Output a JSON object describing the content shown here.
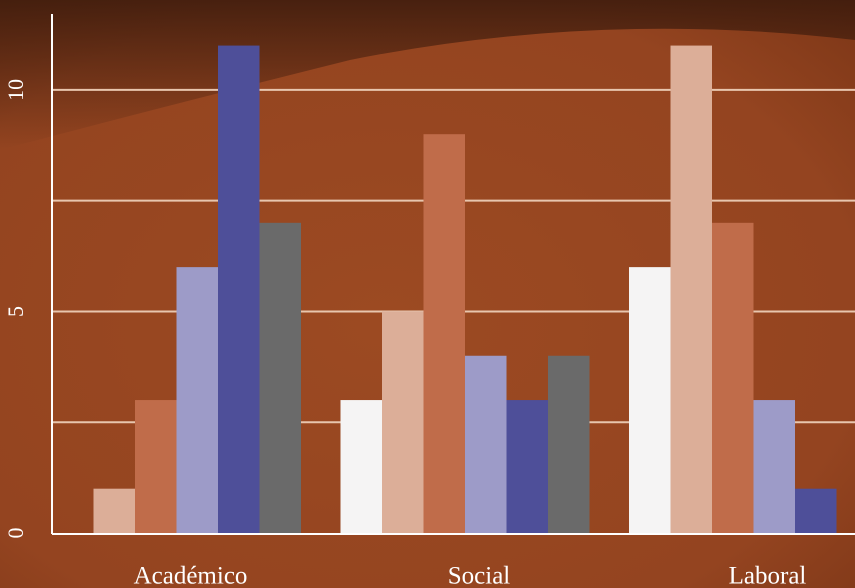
{
  "chart_data": {
    "type": "bar",
    "categories": [
      "Académico",
      "Social",
      "Laboral"
    ],
    "series": [
      {
        "color": "#f5f4f4",
        "values": [
          0,
          3,
          6
        ]
      },
      {
        "color": "#dcae98",
        "values": [
          1,
          5,
          11
        ]
      },
      {
        "color": "#c06c4a",
        "values": [
          3,
          9,
          7
        ]
      },
      {
        "color": "#9d9bc8",
        "values": [
          6,
          4,
          3
        ]
      },
      {
        "color": "#4e4f99",
        "values": [
          11,
          3,
          1
        ]
      },
      {
        "color": "#6a6a6a",
        "values": [
          7,
          4,
          0
        ]
      }
    ],
    "ylim": [
      0,
      10.9
    ],
    "yticks": [
      0,
      5,
      10
    ],
    "minor_yticks": [
      2.5,
      7.5
    ],
    "grid": true
  }
}
